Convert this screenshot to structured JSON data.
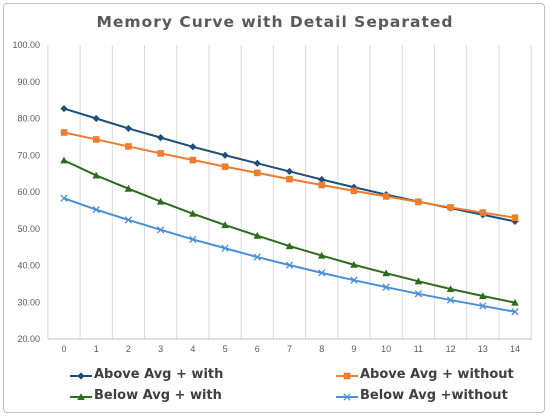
{
  "chart_data": {
    "type": "line",
    "title": "Memory Curve with Detail Separated",
    "xlabel": "",
    "ylabel": "",
    "x": [
      0,
      1,
      2,
      3,
      4,
      5,
      6,
      7,
      8,
      9,
      10,
      11,
      12,
      13,
      14
    ],
    "ylim": [
      20,
      100
    ],
    "yticks": [
      "20.00",
      "30.00",
      "40.00",
      "50.00",
      "60.00",
      "70.00",
      "80.00",
      "90.00",
      "100.00"
    ],
    "grid": "vertical",
    "legend": "bottom",
    "series": [
      {
        "name": "Above Avg + with",
        "color": "#1f4e79",
        "marker": "diamond",
        "values": [
          82.7,
          80.0,
          77.3,
          74.8,
          72.3,
          70.0,
          67.8,
          65.6,
          63.4,
          61.3,
          59.3,
          57.4,
          55.6,
          53.8,
          52.0
        ]
      },
      {
        "name": "Above Avg + without",
        "color": "#ed7d31",
        "marker": "square",
        "values": [
          76.2,
          74.3,
          72.4,
          70.5,
          68.7,
          66.9,
          65.2,
          63.5,
          61.9,
          60.3,
          58.8,
          57.3,
          55.8,
          54.4,
          53.0
        ]
      },
      {
        "name": "Below Avg + with",
        "color": "#2e6b1f",
        "marker": "triangle",
        "values": [
          68.6,
          64.5,
          60.9,
          57.4,
          54.1,
          51.0,
          48.1,
          45.3,
          42.7,
          40.2,
          37.9,
          35.7,
          33.6,
          31.7,
          29.9
        ]
      },
      {
        "name": "Below Avg +without",
        "color": "#4a90d9",
        "marker": "x",
        "values": [
          58.3,
          55.2,
          52.4,
          49.7,
          47.1,
          44.7,
          42.3,
          40.1,
          38.0,
          36.0,
          34.1,
          32.3,
          30.6,
          29.0,
          27.4
        ]
      }
    ]
  }
}
